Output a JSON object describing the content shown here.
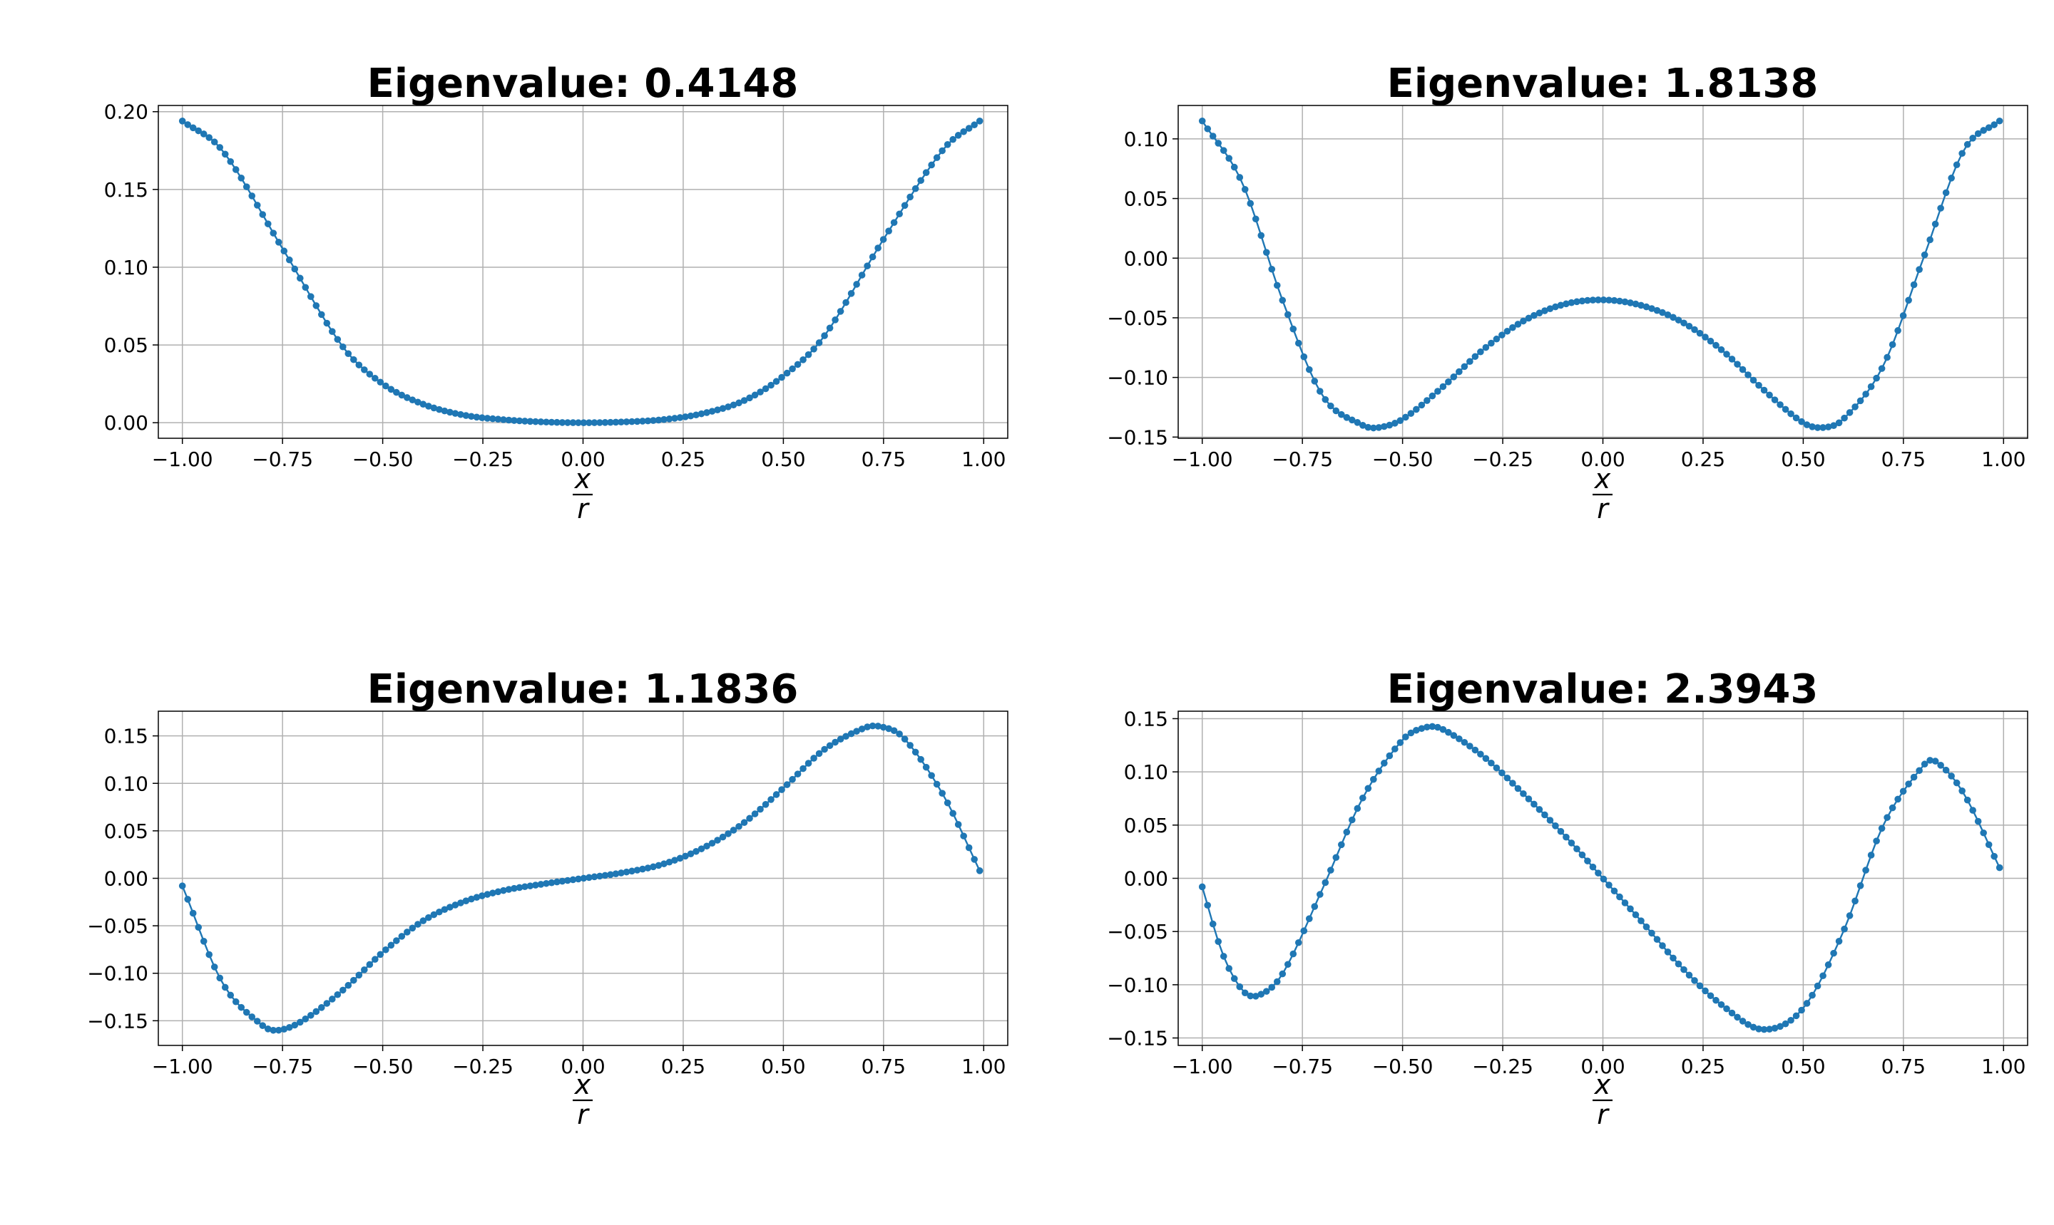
{
  "chart_data": [
    {
      "type": "line",
      "title": "Eigenvalue: 0.4148",
      "xlabel_num": "x",
      "xlabel_den": "r",
      "ylabel": "",
      "xlim": [
        -1.06,
        1.06
      ],
      "ylim": [
        -0.01,
        0.204
      ],
      "xticks": [
        -1.0,
        -0.75,
        -0.5,
        -0.25,
        0.0,
        0.25,
        0.5,
        0.75,
        1.0
      ],
      "xtick_labels": [
        "−1.00",
        "−0.75",
        "−0.50",
        "−0.25",
        "0.00",
        "0.25",
        "0.50",
        "0.75",
        "1.00"
      ],
      "yticks": [
        0.0,
        0.05,
        0.1,
        0.15,
        0.2
      ],
      "ytick_labels": [
        "0.00",
        "0.05",
        "0.10",
        "0.15",
        "0.20"
      ],
      "grid": true,
      "x_range": [
        -1.0,
        0.99
      ],
      "n_points": 150,
      "curve_knots": {
        "x": [
          -1.0,
          -0.9,
          -0.75,
          -0.6,
          -0.5,
          -0.4,
          -0.3,
          -0.2,
          -0.1,
          0.0,
          0.1,
          0.2,
          0.3,
          0.4,
          0.5,
          0.6,
          0.75,
          0.9,
          0.99
        ],
        "y": [
          0.194,
          0.175,
          0.112,
          0.049,
          0.025,
          0.012,
          0.005,
          0.002,
          0.0005,
          0.0,
          0.0005,
          0.002,
          0.006,
          0.014,
          0.03,
          0.055,
          0.118,
          0.176,
          0.194
        ]
      },
      "series": [
        {
          "color": "#1f77b4"
        }
      ]
    },
    {
      "type": "line",
      "title": "Eigenvalue: 1.8138",
      "xlabel_num": "x",
      "xlabel_den": "r",
      "ylabel": "",
      "xlim": [
        -1.06,
        1.06
      ],
      "ylim": [
        -0.151,
        0.128
      ],
      "xticks": [
        -1.0,
        -0.75,
        -0.5,
        -0.25,
        0.0,
        0.25,
        0.5,
        0.75,
        1.0
      ],
      "xtick_labels": [
        "−1.00",
        "−0.75",
        "−0.50",
        "−0.25",
        "0.00",
        "0.25",
        "0.50",
        "0.75",
        "1.00"
      ],
      "yticks": [
        -0.15,
        -0.1,
        -0.05,
        0.0,
        0.05,
        0.1
      ],
      "ytick_labels": [
        "−0.15",
        "−0.10",
        "−0.05",
        "0.00",
        "0.05",
        "0.10"
      ],
      "grid": true,
      "x_range": [
        -1.0,
        0.99
      ],
      "n_points": 150,
      "curve_knots": {
        "x": [
          -1.0,
          -0.9,
          -0.8,
          -0.7,
          -0.6,
          -0.56,
          -0.5,
          -0.4,
          -0.3,
          -0.2,
          -0.1,
          0.0,
          0.1,
          0.2,
          0.3,
          0.4,
          0.5,
          0.55,
          0.6,
          0.7,
          0.8,
          0.9,
          0.99
        ],
        "y": [
          0.115,
          0.063,
          -0.035,
          -0.115,
          -0.14,
          -0.142,
          -0.135,
          -0.108,
          -0.077,
          -0.053,
          -0.039,
          -0.035,
          -0.04,
          -0.054,
          -0.078,
          -0.11,
          -0.138,
          -0.142,
          -0.135,
          -0.09,
          0.0,
          0.09,
          0.115
        ]
      },
      "series": [
        {
          "color": "#1f77b4"
        }
      ]
    },
    {
      "type": "line",
      "title": "Eigenvalue: 1.1836",
      "xlabel_num": "x",
      "xlabel_den": "r",
      "ylabel": "",
      "xlim": [
        -1.06,
        1.06
      ],
      "ylim": [
        -0.176,
        0.176
      ],
      "xticks": [
        -1.0,
        -0.75,
        -0.5,
        -0.25,
        0.0,
        0.25,
        0.5,
        0.75,
        1.0
      ],
      "xtick_labels": [
        "−1.00",
        "−0.75",
        "−0.50",
        "−0.25",
        "0.00",
        "0.25",
        "0.50",
        "0.75",
        "1.00"
      ],
      "yticks": [
        -0.15,
        -0.1,
        -0.05,
        0.0,
        0.05,
        0.1,
        0.15
      ],
      "ytick_labels": [
        "−0.15",
        "−0.10",
        "−0.05",
        "0.00",
        "0.05",
        "0.10",
        "0.15"
      ],
      "grid": true,
      "x_range": [
        -1.0,
        0.99
      ],
      "n_points": 150,
      "curve_knots": {
        "x": [
          -1.0,
          -0.9,
          -0.8,
          -0.76,
          -0.7,
          -0.6,
          -0.5,
          -0.4,
          -0.3,
          -0.2,
          -0.1,
          0.0,
          0.1,
          0.2,
          0.3,
          0.4,
          0.5,
          0.6,
          0.7,
          0.74,
          0.8,
          0.9,
          0.99
        ],
        "y": [
          -0.008,
          -0.11,
          -0.155,
          -0.16,
          -0.15,
          -0.118,
          -0.078,
          -0.045,
          -0.025,
          -0.013,
          -0.006,
          0.0,
          0.006,
          0.015,
          0.032,
          0.058,
          0.095,
          0.135,
          0.158,
          0.16,
          0.148,
          0.087,
          0.008
        ]
      },
      "series": [
        {
          "color": "#1f77b4"
        }
      ]
    },
    {
      "type": "line",
      "title": "Eigenvalue: 2.3943",
      "xlabel_num": "x",
      "xlabel_den": "r",
      "ylabel": "",
      "xlim": [
        -1.06,
        1.06
      ],
      "ylim": [
        -0.157,
        0.157
      ],
      "xticks": [
        -1.0,
        -0.75,
        -0.5,
        -0.25,
        0.0,
        0.25,
        0.5,
        0.75,
        1.0
      ],
      "xtick_labels": [
        "−1.00",
        "−0.75",
        "−0.50",
        "−0.25",
        "0.00",
        "0.25",
        "0.50",
        "0.75",
        "1.00"
      ],
      "yticks": [
        -0.15,
        -0.1,
        -0.05,
        0.0,
        0.05,
        0.1,
        0.15
      ],
      "ytick_labels": [
        "−0.15",
        "−0.10",
        "−0.05",
        "0.00",
        "0.05",
        "0.10",
        "0.15"
      ],
      "grid": true,
      "x_range": [
        -1.0,
        0.99
      ],
      "n_points": 150,
      "curve_knots": {
        "x": [
          -1.0,
          -0.95,
          -0.9,
          -0.86,
          -0.8,
          -0.7,
          -0.6,
          -0.5,
          -0.44,
          -0.4,
          -0.3,
          -0.2,
          -0.1,
          0.0,
          0.1,
          0.2,
          0.3,
          0.4,
          0.5,
          0.6,
          0.7,
          0.8,
          0.83,
          0.9,
          0.99
        ],
        "y": [
          -0.008,
          -0.07,
          -0.105,
          -0.11,
          -0.09,
          -0.01,
          0.075,
          0.13,
          0.142,
          0.14,
          0.115,
          0.08,
          0.042,
          0.0,
          -0.042,
          -0.085,
          -0.12,
          -0.142,
          -0.122,
          -0.05,
          0.05,
          0.106,
          0.11,
          0.08,
          0.01
        ]
      },
      "series": [
        {
          "color": "#1f77b4"
        }
      ]
    }
  ]
}
